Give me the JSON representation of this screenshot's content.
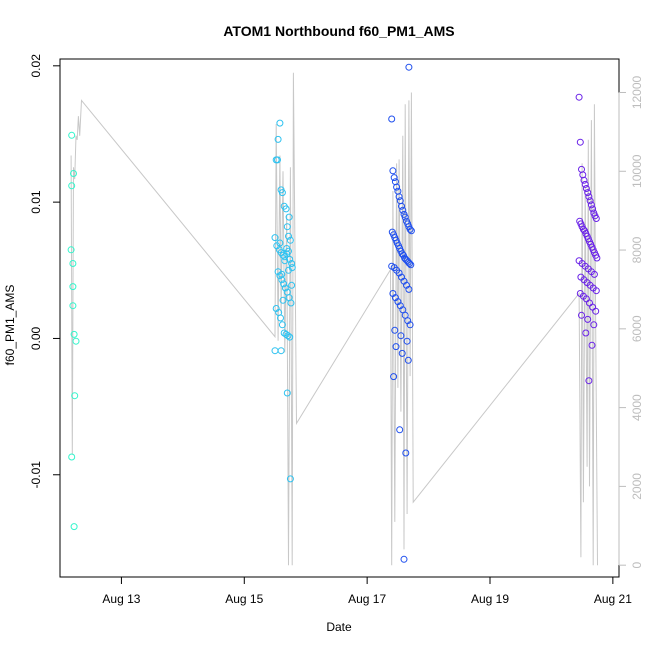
{
  "chart_data": {
    "type": "scatter",
    "title": "ATOM1 Northbound f60_PM1_AMS",
    "xlabel": "Date",
    "ylabel": "f60_PM1_AMS",
    "xlim": [
      12.0,
      21.1
    ],
    "ylim": [
      -0.0175,
      0.0205
    ],
    "y2lim": [
      -300,
      12850
    ],
    "x_ticks": [
      {
        "value": 13,
        "label": "Aug 13"
      },
      {
        "value": 15,
        "label": "Aug 15"
      },
      {
        "value": 17,
        "label": "Aug 17"
      },
      {
        "value": 19,
        "label": "Aug 19"
      },
      {
        "value": 21,
        "label": "Aug 21"
      }
    ],
    "y_ticks": [
      {
        "value": -0.01,
        "label": "-0.01"
      },
      {
        "value": 0.0,
        "label": "0.00"
      },
      {
        "value": 0.01,
        "label": "0.01"
      },
      {
        "value": 0.02,
        "label": "0.02"
      }
    ],
    "y2_ticks": [
      {
        "value": 0,
        "label": "0"
      },
      {
        "value": 2000,
        "label": "2000"
      },
      {
        "value": 4000,
        "label": "4000"
      },
      {
        "value": 6000,
        "label": "6000"
      },
      {
        "value": 8000,
        "label": "8000"
      },
      {
        "value": 10000,
        "label": "10000"
      },
      {
        "value": 12000,
        "label": "12000"
      }
    ],
    "colors": {
      "line": "#c8c8c8",
      "right_axis": "#bdbdbd",
      "point_gradient": [
        "#33f5cc",
        "#2ec2f0",
        "#1f4fee",
        "#6a22e8"
      ]
    },
    "grid": false,
    "line_series": {
      "axis": "right",
      "x": [
        12.18,
        12.2,
        12.22,
        12.24,
        12.26,
        12.28,
        12.3,
        12.32,
        12.35,
        15.5,
        15.52,
        15.55,
        15.58,
        15.6,
        15.63,
        15.66,
        15.69,
        15.72,
        15.75,
        15.78,
        15.8,
        15.85,
        17.38,
        17.4,
        17.42,
        17.45,
        17.48,
        17.5,
        17.52,
        17.55,
        17.58,
        17.6,
        17.62,
        17.65,
        17.68,
        17.7,
        17.72,
        17.75,
        20.45,
        20.48,
        20.5,
        20.52,
        20.55,
        20.58,
        20.6,
        20.62,
        20.65,
        20.68,
        20.7,
        20.72,
        20.75
      ],
      "y": [
        10400,
        2800,
        10100,
        9800,
        10900,
        10800,
        11400,
        10900,
        11800,
        5800,
        11200,
        5700,
        10400,
        6400,
        10000,
        5400,
        8900,
        0,
        10100,
        0,
        12500,
        3600,
        7500,
        0,
        9500,
        1100,
        10200,
        4500,
        10300,
        3900,
        10900,
        400,
        11700,
        1300,
        11800,
        4800,
        12000,
        1600,
        6900,
        200,
        10200,
        1600,
        9600,
        2500,
        10800,
        2000,
        11300,
        0,
        11700,
        6000,
        0
      ]
    },
    "series": [
      {
        "x": [
          12.19,
          12.22,
          12.19,
          12.18,
          12.21,
          12.21,
          12.23,
          12.26,
          12.24,
          12.19,
          12.23,
          12.21
        ],
        "y": [
          0.0149,
          0.0121,
          0.0112,
          0.0065,
          0.0038,
          0.0024,
          0.0003,
          -0.0002,
          -0.0042,
          -0.0087,
          -0.0138,
          0.0055
        ]
      },
      {
        "x": [
          15.52,
          15.55,
          15.58,
          15.6,
          15.62,
          15.65,
          15.68,
          15.7,
          15.72,
          15.75,
          15.5,
          15.53,
          15.57,
          15.6,
          15.63,
          15.66,
          15.69,
          15.72,
          15.74,
          15.77,
          15.78,
          15.55,
          15.58,
          15.61,
          15.64,
          15.67,
          15.7,
          15.73,
          15.76,
          15.52,
          15.56,
          15.59,
          15.62,
          15.65,
          15.68,
          15.71,
          15.74,
          15.5,
          15.6,
          15.7,
          15.75,
          15.58,
          15.66,
          15.72,
          15.63,
          15.54,
          15.69,
          15.73,
          15.61,
          15.77
        ],
        "y": [
          0.0131,
          0.0146,
          0.0158,
          0.0109,
          0.0107,
          0.0097,
          0.0095,
          0.0082,
          0.0075,
          0.0072,
          0.0074,
          0.0068,
          0.0065,
          0.0063,
          0.0061,
          0.006,
          0.0062,
          0.0064,
          0.0058,
          0.0055,
          0.0052,
          0.0049,
          0.0046,
          0.0043,
          0.004,
          0.0037,
          0.0034,
          0.003,
          0.0026,
          0.0022,
          0.0019,
          0.0015,
          0.001,
          0.0004,
          0.0003,
          0.0002,
          0.0001,
          -0.0009,
          -0.0009,
          -0.004,
          -0.0103,
          0.007,
          0.0057,
          0.005,
          0.0028,
          0.0131,
          0.0066,
          0.0089,
          0.0047,
          0.0039
        ]
      },
      {
        "x": [
          17.4,
          17.42,
          17.44,
          17.46,
          17.48,
          17.5,
          17.52,
          17.54,
          17.56,
          17.58,
          17.6,
          17.62,
          17.64,
          17.66,
          17.68,
          17.7,
          17.72,
          17.41,
          17.43,
          17.45,
          17.47,
          17.49,
          17.51,
          17.53,
          17.55,
          17.57,
          17.59,
          17.61,
          17.63,
          17.65,
          17.67,
          17.69,
          17.71,
          17.4,
          17.44,
          17.48,
          17.52,
          17.56,
          17.6,
          17.64,
          17.68,
          17.42,
          17.46,
          17.5,
          17.54,
          17.58,
          17.62,
          17.66,
          17.7,
          17.45,
          17.55,
          17.65,
          17.47,
          17.57,
          17.67,
          17.43,
          17.53,
          17.63,
          17.6,
          17.68
        ],
        "y": [
          0.0161,
          0.0123,
          0.0118,
          0.0115,
          0.0111,
          0.0108,
          0.0104,
          0.0101,
          0.0097,
          0.0094,
          0.0091,
          0.0089,
          0.0086,
          0.0084,
          0.0082,
          0.008,
          0.0079,
          0.0078,
          0.0076,
          0.0074,
          0.0072,
          0.007,
          0.0068,
          0.0066,
          0.0064,
          0.0062,
          0.0061,
          0.0059,
          0.0058,
          0.0057,
          0.0056,
          0.0055,
          0.0054,
          0.0053,
          0.0052,
          0.005,
          0.0048,
          0.0045,
          0.0042,
          0.0039,
          0.0036,
          0.0033,
          0.003,
          0.0027,
          0.0024,
          0.0021,
          0.0017,
          0.0013,
          0.001,
          0.0006,
          0.0002,
          -0.0002,
          -0.0006,
          -0.0011,
          -0.0016,
          -0.0028,
          -0.0067,
          -0.0084,
          -0.0162,
          0.0199
        ]
      },
      {
        "x": [
          20.45,
          20.47,
          20.49,
          20.51,
          20.53,
          20.55,
          20.57,
          20.59,
          20.61,
          20.63,
          20.65,
          20.67,
          20.69,
          20.71,
          20.73,
          20.46,
          20.48,
          20.5,
          20.52,
          20.54,
          20.56,
          20.58,
          20.6,
          20.62,
          20.64,
          20.66,
          20.68,
          20.7,
          20.72,
          20.74,
          20.45,
          20.5,
          20.55,
          20.6,
          20.65,
          20.7,
          20.48,
          20.53,
          20.58,
          20.63,
          20.68,
          20.73,
          20.47,
          20.52,
          20.57,
          20.62,
          20.67,
          20.72,
          20.49,
          20.59,
          20.69,
          20.56,
          20.66,
          20.61
        ],
        "y": [
          0.0177,
          0.0144,
          0.0124,
          0.012,
          0.0116,
          0.0113,
          0.011,
          0.0107,
          0.0104,
          0.0101,
          0.0098,
          0.0095,
          0.0092,
          0.009,
          0.0088,
          0.0086,
          0.0084,
          0.0082,
          0.008,
          0.0079,
          0.0077,
          0.0075,
          0.0073,
          0.0071,
          0.0069,
          0.0067,
          0.0065,
          0.0063,
          0.0061,
          0.0059,
          0.0057,
          0.0055,
          0.0053,
          0.0051,
          0.0049,
          0.0047,
          0.0045,
          0.0043,
          0.0041,
          0.0039,
          0.0037,
          0.0035,
          0.0033,
          0.0031,
          0.0029,
          0.0026,
          0.0023,
          0.002,
          0.0017,
          0.0014,
          0.001,
          0.0004,
          -0.0005,
          -0.0031
        ]
      }
    ]
  }
}
